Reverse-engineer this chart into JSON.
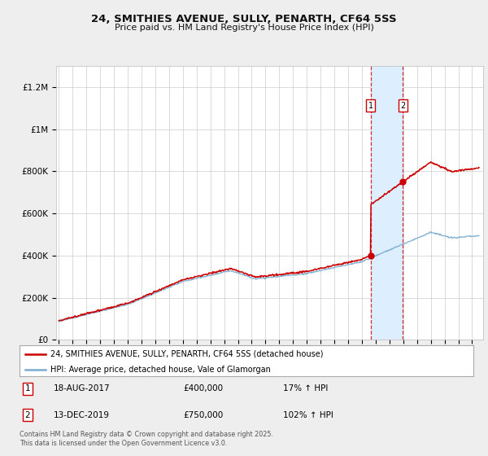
{
  "title": "24, SMITHIES AVENUE, SULLY, PENARTH, CF64 5SS",
  "subtitle": "Price paid vs. HM Land Registry's House Price Index (HPI)",
  "bg_color": "#eeeeee",
  "plot_bg_color": "#ffffff",
  "ylabel_ticks": [
    "£0",
    "£200K",
    "£400K",
    "£600K",
    "£800K",
    "£1M",
    "£1.2M"
  ],
  "ytick_vals": [
    0,
    200000,
    400000,
    600000,
    800000,
    1000000,
    1200000
  ],
  "ylim": [
    0,
    1300000
  ],
  "xlim_start": 1994.8,
  "xlim_end": 2025.8,
  "transaction1_date": 2017.625,
  "transaction1_price": 400000,
  "transaction2_date": 2019.958,
  "transaction2_price": 750000,
  "legend_line1": "24, SMITHIES AVENUE, SULLY, PENARTH, CF64 5SS (detached house)",
  "legend_line2": "HPI: Average price, detached house, Vale of Glamorgan",
  "footer": "Contains HM Land Registry data © Crown copyright and database right 2025.\nThis data is licensed under the Open Government Licence v3.0.",
  "red_color": "#cc0000",
  "blue_color": "#7aadcf",
  "shaded_color": "#ddeeff"
}
